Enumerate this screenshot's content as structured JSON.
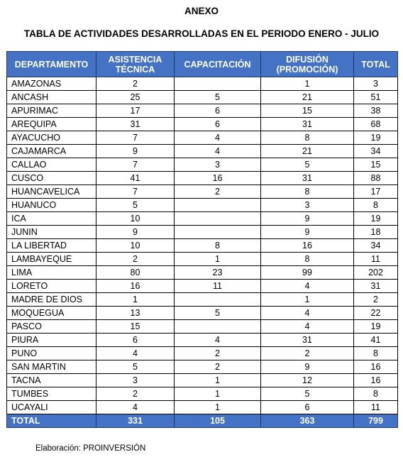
{
  "title": "ANEXO",
  "subtitle": "TABLA DE ACTIVIDADES DESARROLLADAS EN EL PERIODO ENERO - JULIO",
  "columns": [
    "DEPARTAMENTO",
    "ASISTENCIA TÉCNICA",
    "CAPACITACIÓN",
    "DIFUSIÓN (PROMOCIÓN)",
    "TOTAL"
  ],
  "rows": [
    {
      "dep": "AMAZONAS",
      "asis": "2",
      "cap": "",
      "dif": "1",
      "total": "3"
    },
    {
      "dep": "ANCASH",
      "asis": "25",
      "cap": "5",
      "dif": "21",
      "total": "51"
    },
    {
      "dep": "APURIMAC",
      "asis": "17",
      "cap": "6",
      "dif": "15",
      "total": "38"
    },
    {
      "dep": "AREQUIPA",
      "asis": "31",
      "cap": "6",
      "dif": "31",
      "total": "68"
    },
    {
      "dep": "AYACUCHO",
      "asis": "7",
      "cap": "4",
      "dif": "8",
      "total": "19"
    },
    {
      "dep": "CAJAMARCA",
      "asis": "9",
      "cap": "4",
      "dif": "21",
      "total": "34"
    },
    {
      "dep": "CALLAO",
      "asis": "7",
      "cap": "3",
      "dif": "5",
      "total": "15"
    },
    {
      "dep": "CUSCO",
      "asis": "41",
      "cap": "16",
      "dif": "31",
      "total": "88"
    },
    {
      "dep": "HUANCAVELICA",
      "asis": "7",
      "cap": "2",
      "dif": "8",
      "total": "17"
    },
    {
      "dep": "HUANUCO",
      "asis": "5",
      "cap": "",
      "dif": "3",
      "total": "8"
    },
    {
      "dep": "ICA",
      "asis": "10",
      "cap": "",
      "dif": "9",
      "total": "19"
    },
    {
      "dep": "JUNIN",
      "asis": "9",
      "cap": "",
      "dif": "9",
      "total": "18"
    },
    {
      "dep": "LA LIBERTAD",
      "asis": "10",
      "cap": "8",
      "dif": "16",
      "total": "34"
    },
    {
      "dep": "LAMBAYEQUE",
      "asis": "2",
      "cap": "1",
      "dif": "8",
      "total": "11"
    },
    {
      "dep": "LIMA",
      "asis": "80",
      "cap": "23",
      "dif": "99",
      "total": "202"
    },
    {
      "dep": "LORETO",
      "asis": "16",
      "cap": "11",
      "dif": "4",
      "total": "31"
    },
    {
      "dep": "MADRE DE DIOS",
      "asis": "1",
      "cap": "",
      "dif": "1",
      "total": "2"
    },
    {
      "dep": "MOQUEGUA",
      "asis": "13",
      "cap": "5",
      "dif": "4",
      "total": "22"
    },
    {
      "dep": "PASCO",
      "asis": "15",
      "cap": "",
      "dif": "4",
      "total": "19"
    },
    {
      "dep": "PIURA",
      "asis": "6",
      "cap": "4",
      "dif": "31",
      "total": "41"
    },
    {
      "dep": "PUNO",
      "asis": "4",
      "cap": "2",
      "dif": "2",
      "total": "8"
    },
    {
      "dep": "SAN MARTIN",
      "asis": "5",
      "cap": "2",
      "dif": "9",
      "total": "16"
    },
    {
      "dep": "TACNA",
      "asis": "3",
      "cap": "1",
      "dif": "12",
      "total": "16"
    },
    {
      "dep": "TUMBES",
      "asis": "2",
      "cap": "1",
      "dif": "5",
      "total": "8"
    },
    {
      "dep": "UCAYALI",
      "asis": "4",
      "cap": "1",
      "dif": "6",
      "total": "11"
    }
  ],
  "totals": {
    "dep": "TOTAL",
    "asis": "331",
    "cap": "105",
    "dif": "363",
    "total": "799"
  },
  "footer": "Elaboración: PROINVERSIÓN",
  "colors": {
    "header_bg": "#4472c4",
    "header_text": "#ffffff"
  }
}
